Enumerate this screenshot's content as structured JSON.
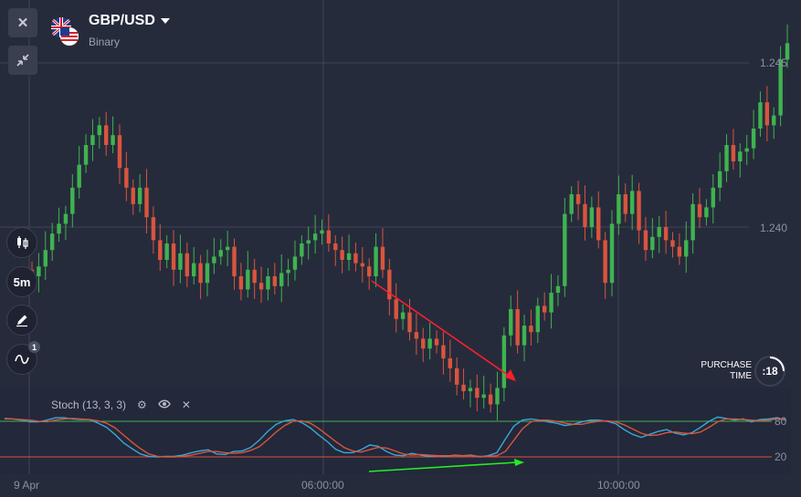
{
  "asset": {
    "pair": "GBP/USD",
    "type": "Binary",
    "flag_icon": "uk-us-flag-icon"
  },
  "toolbar": {
    "close_icon": "close-icon",
    "collapse_icon": "collapse-arrows-icon"
  },
  "left_tools": {
    "chart_type_icon": "candlestick-icon",
    "timeframe": "5m",
    "draw_icon": "pencil-icon",
    "indicators_icon": "wave-icon",
    "indicators_count": "1"
  },
  "price_axis": {
    "labels": [
      "1.245",
      "1.240"
    ]
  },
  "time_axis": {
    "labels": [
      "9 Apr",
      "06:00:00",
      "10:00:00"
    ]
  },
  "indicator": {
    "name": "Stoch (13, 3, 3)",
    "levels": [
      "80",
      "20"
    ],
    "icons": [
      "gear-icon",
      "eye-icon",
      "close-icon"
    ]
  },
  "purchase": {
    "label_line1": "PURCHASE",
    "label_line2": "TIME",
    "timer": ":18"
  },
  "colors": {
    "background": "#262b3c",
    "bull": "#3fb34f",
    "bear": "#d8553d",
    "level80": "#3fb34f",
    "level20": "#d8553d",
    "stoch_k": "#3aa7d6",
    "stoch_d": "#d8553d",
    "annotation_red": "#ff1f2d",
    "annotation_green": "#22ee22"
  },
  "chart_data": [
    {
      "type": "candlestick",
      "y_ticks": [
        1.245,
        1.24
      ],
      "ylim": [
        1.2345,
        1.2465
      ],
      "x_ticks": [
        "9 Apr",
        "06:00:00",
        "10:00:00"
      ],
      "closes": [
        1.2385,
        1.2388,
        1.2393,
        1.2398,
        1.2401,
        1.2404,
        1.2412,
        1.2419,
        1.2425,
        1.2428,
        1.2431,
        1.2425,
        1.2428,
        1.2418,
        1.2412,
        1.2407,
        1.2412,
        1.2403,
        1.2396,
        1.239,
        1.2395,
        1.2387,
        1.2392,
        1.2385,
        1.2389,
        1.2383,
        1.2389,
        1.2391,
        1.2393,
        1.2394,
        1.2385,
        1.2381,
        1.2387,
        1.2383,
        1.2381,
        1.2385,
        1.2382,
        1.2386,
        1.2387,
        1.2391,
        1.2395,
        1.2396,
        1.2398,
        1.2399,
        1.2395,
        1.2393,
        1.239,
        1.2392,
        1.2389,
        1.2388,
        1.2385,
        1.2394,
        1.2387,
        1.2378,
        1.2372,
        1.2374,
        1.2368,
        1.2366,
        1.2363,
        1.2366,
        1.2364,
        1.236,
        1.2357,
        1.2352,
        1.235,
        1.2351,
        1.2348,
        1.2349,
        1.2346,
        1.2351,
        1.2367,
        1.2375,
        1.2364,
        1.237,
        1.2368,
        1.2376,
        1.2374,
        1.238,
        1.2382,
        1.2404,
        1.241,
        1.2407,
        1.24,
        1.2406,
        1.2396,
        1.2383,
        1.2401,
        1.241,
        1.2404,
        1.2411,
        1.2399,
        1.2393,
        1.2397,
        1.24,
        1.2396,
        1.2394,
        1.2391,
        1.2396,
        1.2407,
        1.2403,
        1.2406,
        1.2412,
        1.2417,
        1.2425,
        1.242,
        1.2423,
        1.2424,
        1.243,
        1.2438,
        1.2431,
        1.2434,
        1.2451,
        1.2456
      ]
    },
    {
      "type": "line",
      "title": "Stoch (13, 3, 3)",
      "ylim": [
        0,
        100
      ],
      "levels": [
        80,
        20
      ],
      "series": [
        {
          "values": [
            85,
            84,
            82,
            79,
            79,
            82,
            86,
            86,
            84,
            83,
            83,
            77,
            70,
            58,
            44,
            34,
            25,
            21,
            20,
            21,
            21,
            23,
            27,
            30,
            32,
            25,
            24,
            29,
            30,
            36,
            48,
            63,
            75,
            81,
            83,
            78,
            69,
            57,
            46,
            33,
            27,
            27,
            32,
            40,
            38,
            29,
            23,
            22,
            26,
            23,
            21,
            22,
            21,
            23,
            22,
            23,
            20,
            22,
            27,
            50,
            72,
            82,
            84,
            82,
            79,
            77,
            73,
            75,
            79,
            82,
            82,
            80,
            76,
            66,
            58,
            53,
            58,
            63,
            66,
            60,
            57,
            61,
            70,
            80,
            87,
            85,
            82,
            84,
            79,
            83,
            84,
            86,
            82
          ]
        },
        {
          "values": [
            84,
            84,
            83,
            82,
            80,
            79,
            82,
            84,
            85,
            84,
            83,
            81,
            77,
            69,
            57,
            45,
            34,
            25,
            21,
            20,
            20,
            21,
            23,
            26,
            29,
            29,
            27,
            26,
            27,
            31,
            37,
            49,
            62,
            73,
            80,
            81,
            77,
            68,
            57,
            46,
            36,
            30,
            28,
            32,
            36,
            35,
            30,
            25,
            23,
            24,
            23,
            22,
            22,
            22,
            22,
            22,
            21,
            21,
            22,
            29,
            48,
            67,
            79,
            82,
            82,
            80,
            77,
            75,
            75,
            78,
            80,
            81,
            79,
            74,
            67,
            60,
            56,
            57,
            61,
            62,
            60,
            59,
            62,
            70,
            79,
            84,
            84,
            83,
            82,
            81,
            82,
            84,
            84
          ]
        }
      ]
    }
  ]
}
